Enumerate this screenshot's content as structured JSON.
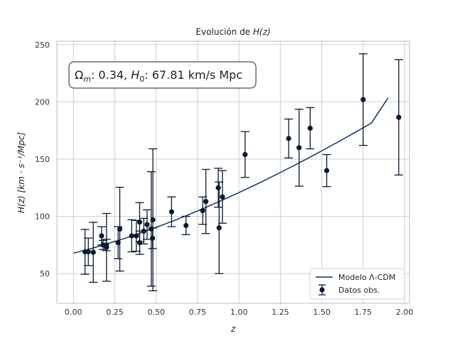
{
  "chart_data": {
    "type": "scatter",
    "title_pre": "Evolución de ",
    "title_math": "H(z)",
    "xlabel": "z",
    "ylabel": "H(z) [km · s⁻¹/Mpc]",
    "xlim": [
      -0.1,
      2.03
    ],
    "ylim": [
      24,
      253
    ],
    "xticks": [
      0.0,
      0.25,
      0.5,
      0.75,
      1.0,
      1.25,
      1.5,
      1.75,
      2.0
    ],
    "xtick_labels": [
      "0.00",
      "0.25",
      "0.50",
      "0.75",
      "1.00",
      "1.25",
      "1.50",
      "1.75",
      "2.00"
    ],
    "yticks": [
      50,
      100,
      150,
      200,
      250
    ],
    "ytick_labels": [
      "50",
      "100",
      "150",
      "200",
      "250"
    ],
    "grid": true,
    "legend_position": "bottom-right",
    "annotation": "Ωm: 0.34, H0: 67.81 km/s Mpc",
    "annotation_parts": {
      "omega": "Ω",
      "omega_sub": "m",
      "mid": ": 0.34, ",
      "h": "H",
      "h_sub": "0",
      "tail": ": 67.81 km/s Mpc"
    },
    "colors": {
      "model": "#0d3560",
      "points": "#0b1a2e",
      "grid": "#cfcfcf"
    },
    "series": [
      {
        "name": "Modelo Λ-CDM",
        "kind": "line",
        "x": [
          0.0,
          0.1,
          0.2,
          0.3,
          0.4,
          0.5,
          0.6,
          0.7,
          0.8,
          0.9,
          1.0,
          1.1,
          1.2,
          1.3,
          1.4,
          1.5,
          1.6,
          1.7,
          1.8,
          1.9
        ],
        "y": [
          67.8,
          71.6,
          75.8,
          80.3,
          85.2,
          90.4,
          95.9,
          101.7,
          107.8,
          114.2,
          120.8,
          127.6,
          134.7,
          142.0,
          149.5,
          157.2,
          165.1,
          173.2,
          181.5,
          203.3
        ]
      },
      {
        "name": "Datos obs.",
        "kind": "errorbar",
        "points": [
          {
            "x": 0.07,
            "y": 69,
            "err": 19.6
          },
          {
            "x": 0.09,
            "y": 69,
            "err": 12
          },
          {
            "x": 0.12,
            "y": 68.6,
            "err": 26.2
          },
          {
            "x": 0.17,
            "y": 83,
            "err": 8
          },
          {
            "x": 0.179,
            "y": 75,
            "err": 4
          },
          {
            "x": 0.199,
            "y": 75,
            "err": 5
          },
          {
            "x": 0.2,
            "y": 72.9,
            "err": 29.6
          },
          {
            "x": 0.27,
            "y": 77,
            "err": 14
          },
          {
            "x": 0.28,
            "y": 88.8,
            "err": 36.6
          },
          {
            "x": 0.352,
            "y": 83,
            "err": 14
          },
          {
            "x": 0.38,
            "y": 83,
            "err": 13.5
          },
          {
            "x": 0.4,
            "y": 95,
            "err": 17
          },
          {
            "x": 0.4004,
            "y": 77,
            "err": 10.2
          },
          {
            "x": 0.425,
            "y": 87.1,
            "err": 11.2
          },
          {
            "x": 0.445,
            "y": 92.8,
            "err": 12.9
          },
          {
            "x": 0.47,
            "y": 89,
            "err": 50
          },
          {
            "x": 0.478,
            "y": 80.9,
            "err": 9
          },
          {
            "x": 0.48,
            "y": 97,
            "err": 62
          },
          {
            "x": 0.593,
            "y": 104,
            "err": 13
          },
          {
            "x": 0.68,
            "y": 92,
            "err": 8
          },
          {
            "x": 0.781,
            "y": 105,
            "err": 12
          },
          {
            "x": 0.8,
            "y": 113,
            "err": 28
          },
          {
            "x": 0.875,
            "y": 125,
            "err": 17
          },
          {
            "x": 0.88,
            "y": 90,
            "err": 40
          },
          {
            "x": 0.9,
            "y": 117,
            "err": 23
          },
          {
            "x": 1.037,
            "y": 154,
            "err": 20
          },
          {
            "x": 1.3,
            "y": 168,
            "err": 17
          },
          {
            "x": 1.363,
            "y": 160,
            "err": 33.6
          },
          {
            "x": 1.43,
            "y": 177,
            "err": 18
          },
          {
            "x": 1.53,
            "y": 140,
            "err": 14
          },
          {
            "x": 1.75,
            "y": 202,
            "err": 40
          },
          {
            "x": 1.965,
            "y": 186.5,
            "err": 50.4
          }
        ]
      }
    ]
  }
}
